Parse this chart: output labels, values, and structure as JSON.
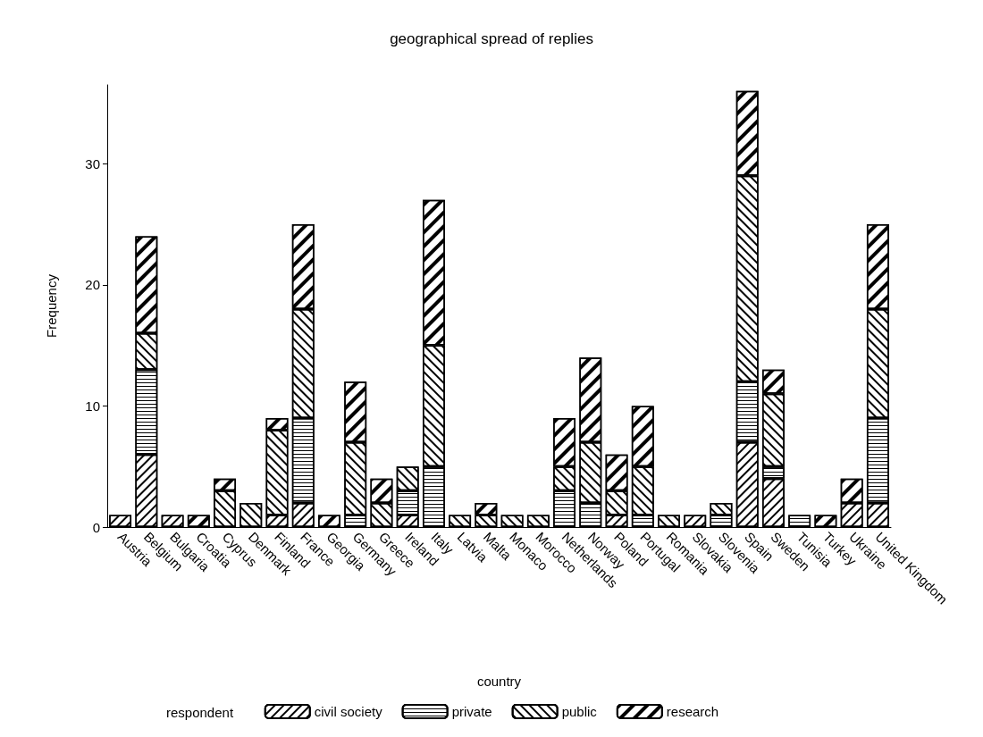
{
  "chart_data": {
    "type": "bar",
    "title": "geographical spread of replies",
    "xlabel": "country",
    "ylabel": "Frequency",
    "legend_title": "respondent",
    "stacked": true,
    "categories": [
      "Austria",
      "Belgium",
      "Bulgaria",
      "Croatia",
      "Cyprus",
      "Denmark",
      "Finland",
      "France",
      "Georgia",
      "Germany",
      "Greece",
      "Ireland",
      "Italy",
      "Latvia",
      "Malta",
      "Monaco",
      "Morocco",
      "Netherlands",
      "Norway",
      "Poland",
      "Portugal",
      "Romania",
      "Slovakia",
      "Slovenia",
      "Spain",
      "Sweden",
      "Tunisia",
      "Turkey",
      "Ukraine",
      "United Kingdom"
    ],
    "series": [
      {
        "name": "civil society",
        "color": "#000000",
        "values": [
          1,
          6,
          1,
          null,
          null,
          null,
          1,
          2,
          null,
          null,
          null,
          1,
          null,
          null,
          null,
          null,
          null,
          null,
          null,
          1,
          null,
          null,
          1,
          null,
          7,
          4,
          null,
          null,
          2,
          2
        ]
      },
      {
        "name": "private",
        "color": "#000000",
        "values": [
          null,
          7,
          null,
          null,
          null,
          null,
          null,
          7,
          null,
          1,
          null,
          2,
          5,
          null,
          null,
          null,
          null,
          3,
          2,
          null,
          1,
          null,
          null,
          1,
          5,
          1,
          1,
          null,
          null,
          7
        ]
      },
      {
        "name": "public",
        "color": "#000000",
        "values": [
          null,
          3,
          null,
          null,
          3,
          2,
          7,
          9,
          null,
          6,
          2,
          2,
          10,
          1,
          1,
          1,
          1,
          2,
          5,
          2,
          4,
          1,
          null,
          1,
          17,
          6,
          null,
          null,
          null,
          9
        ]
      },
      {
        "name": "research",
        "color": "#000000",
        "values": [
          null,
          8,
          null,
          1,
          1,
          null,
          1,
          7,
          1,
          5,
          2,
          null,
          12,
          null,
          1,
          null,
          null,
          4,
          7,
          3,
          5,
          null,
          null,
          null,
          7,
          2,
          null,
          1,
          2,
          7
        ]
      }
    ],
    "ylim": [
      0,
      36.5
    ],
    "yticks": [
      0,
      10,
      20,
      30
    ],
    "grid": false,
    "legend": "bottom"
  }
}
